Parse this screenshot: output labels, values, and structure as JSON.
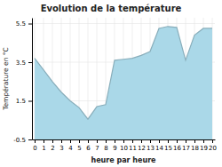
{
  "chart_data": {
    "type": "area",
    "title": "Evolution de la température",
    "x_label": "heure par heure",
    "y_label": "Température en °C",
    "x": [
      0,
      1,
      2,
      3,
      4,
      5,
      6,
      7,
      8,
      9,
      10,
      11,
      12,
      13,
      14,
      15,
      16,
      17,
      18,
      19,
      20
    ],
    "values": [
      3.7,
      3.1,
      2.5,
      1.95,
      1.5,
      1.15,
      0.55,
      1.2,
      1.3,
      3.6,
      3.65,
      3.7,
      3.85,
      4.05,
      5.25,
      5.35,
      5.3,
      3.6,
      4.9,
      5.25,
      5.25
    ],
    "color": "#aad8e8",
    "xlim": [
      -0.3,
      20.3
    ],
    "xticks": [
      0,
      1,
      2,
      3,
      4,
      5,
      6,
      7,
      8,
      9,
      10,
      11,
      12,
      13,
      14,
      15,
      16,
      17,
      18,
      19,
      20
    ],
    "ylim": [
      -0.5,
      5.8
    ],
    "yticks": [
      -0.5,
      1.5,
      3.5,
      5.5
    ],
    "grid": true
  }
}
